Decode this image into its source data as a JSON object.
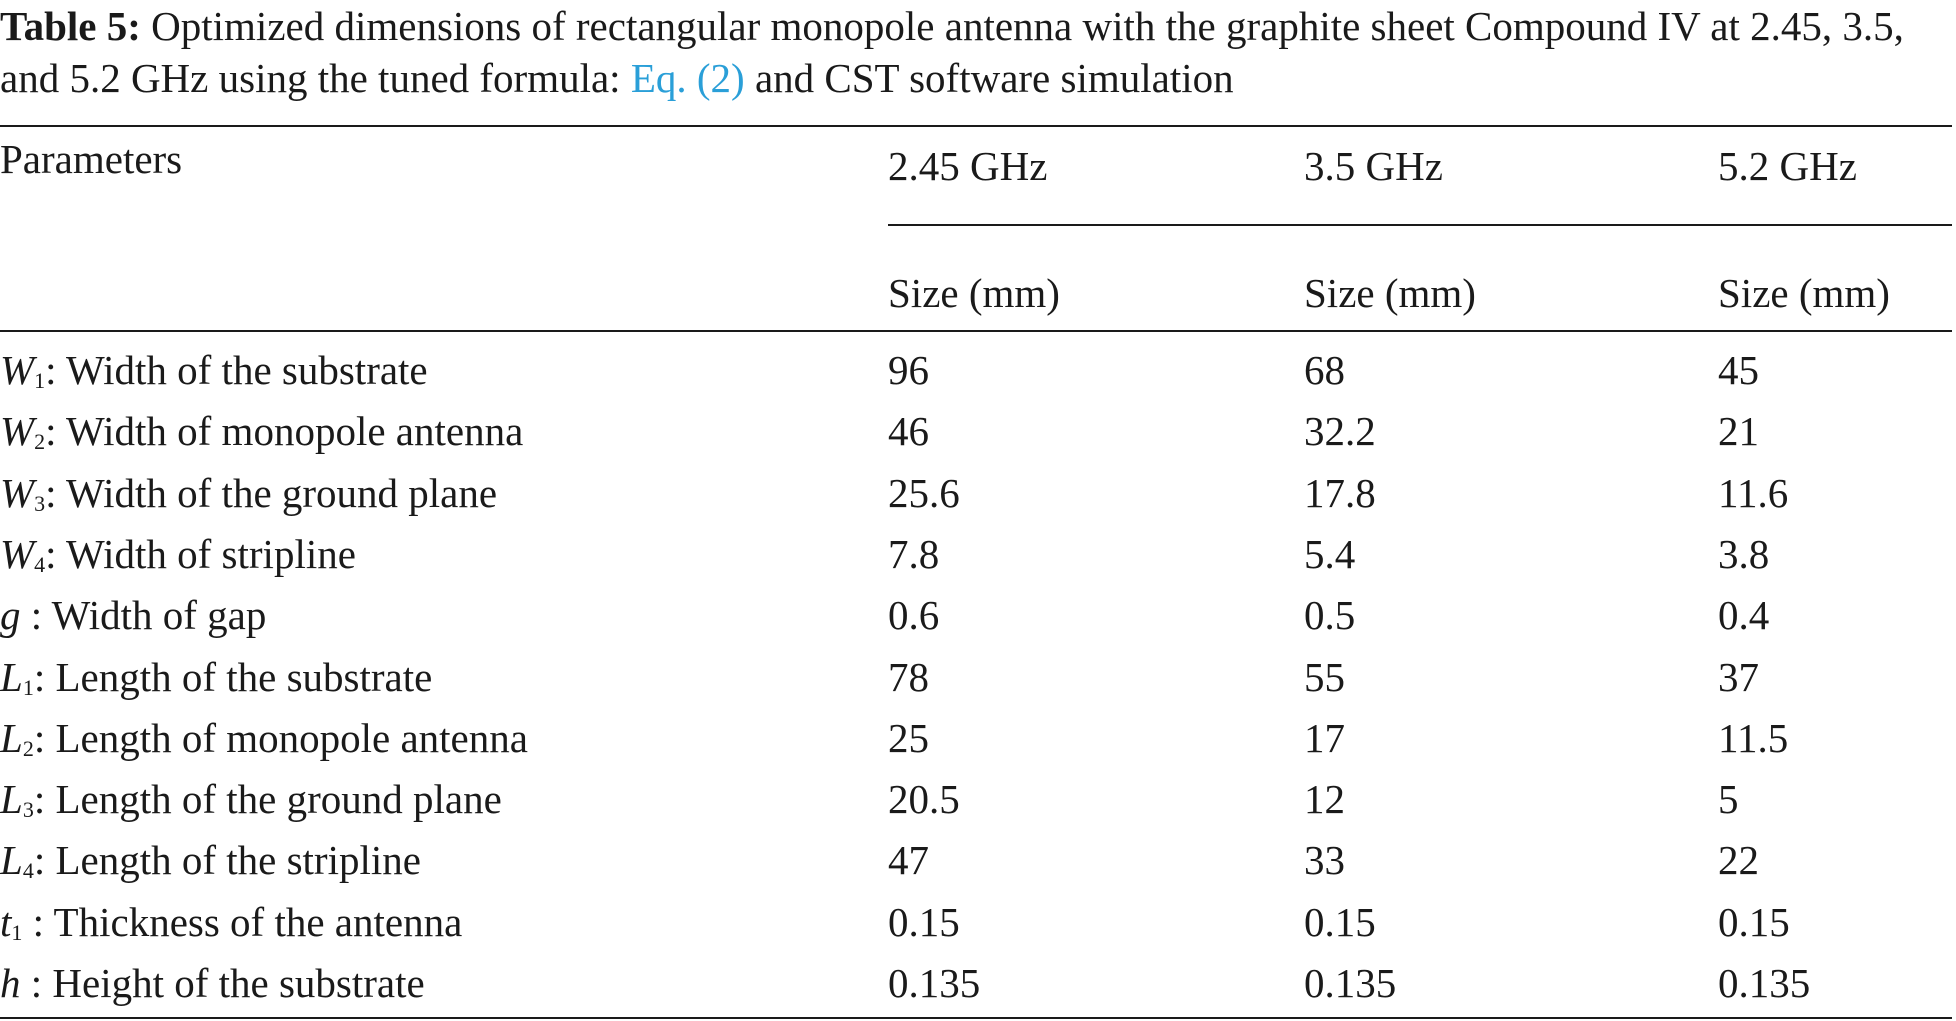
{
  "caption": {
    "label": "Table 5:",
    "text_before_link": " Optimized dimensions of rectangular monopole antenna with the graphite sheet Compound IV at 2.45, 3.5, and 5.2 GHz using the tuned formula: ",
    "link": "Eq. (2)",
    "text_after_link": " and CST software simulation"
  },
  "table": {
    "header_parameters": "Parameters",
    "frequencies": [
      "2.45 GHz",
      "3.5 GHz",
      "5.2 GHz"
    ],
    "subheader": [
      "Size (mm)",
      "Size (mm)",
      "Size (mm)"
    ],
    "rows": [
      {
        "sym": "W",
        "sub": "1",
        "desc": ": Width of the substrate",
        "v": [
          "96",
          "68",
          "45"
        ]
      },
      {
        "sym": "W",
        "sub": "2",
        "desc": ": Width of monopole antenna",
        "v": [
          "46",
          "32.2",
          "21"
        ]
      },
      {
        "sym": "W",
        "sub": "3",
        "desc": ": Width of the ground plane",
        "v": [
          "25.6",
          "17.8",
          "11.6"
        ]
      },
      {
        "sym": "W",
        "sub": "4",
        "desc": ": Width of stripline",
        "v": [
          "7.8",
          "5.4",
          "3.8"
        ]
      },
      {
        "sym": "g",
        "sub": "",
        "desc": " : Width of gap",
        "v": [
          "0.6",
          "0.5",
          "0.4"
        ]
      },
      {
        "sym": "L",
        "sub": "1",
        "desc": ": Length of the substrate",
        "v": [
          "78",
          "55",
          "37"
        ]
      },
      {
        "sym": "L",
        "sub": "2",
        "desc": ": Length of monopole antenna",
        "v": [
          "25",
          "17",
          "11.5"
        ]
      },
      {
        "sym": "L",
        "sub": "3",
        "desc": ": Length of the ground plane",
        "v": [
          "20.5",
          "12",
          "5"
        ]
      },
      {
        "sym": "L",
        "sub": "4",
        "desc": ": Length of the stripline",
        "v": [
          "47",
          "33",
          "22"
        ]
      },
      {
        "sym": "t",
        "sub": "1",
        "desc": " : Thickness of the antenna",
        "v": [
          "0.15",
          "0.15",
          "0.15"
        ]
      },
      {
        "sym": "h",
        "sub": "",
        "desc": " : Height of the substrate",
        "v": [
          "0.135",
          "0.135",
          "0.135"
        ]
      }
    ]
  }
}
